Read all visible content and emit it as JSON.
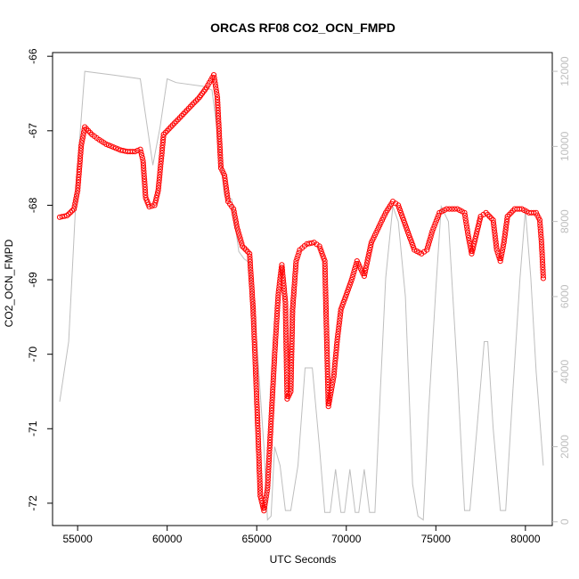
{
  "chart_data": {
    "type": "scatter",
    "title": "ORCAS RF08 CO2_OCN_FMPD",
    "xlabel": "UTC Seconds",
    "ylabel": "CO2_OCN_FMPD",
    "xlim": [
      53600,
      81500
    ],
    "ylim": [
      -72.3,
      -65.95
    ],
    "x_ticks": [
      55000,
      60000,
      65000,
      70000,
      75000,
      80000
    ],
    "y_ticks": [
      -72,
      -71,
      -70,
      -69,
      -68,
      -67,
      -66
    ],
    "y2lim": [
      -100,
      12500
    ],
    "y2_ticks": [
      0,
      2000,
      4000,
      6000,
      8000,
      10000,
      12000
    ],
    "grid": false,
    "colors": {
      "primary": "#ff0000",
      "secondary": "#bebebe",
      "axis": "#000000"
    },
    "series": [
      {
        "role": "primary",
        "marker": "open-circle",
        "points": [
          [
            54000,
            -68.16
          ],
          [
            54400,
            -68.14
          ],
          [
            54800,
            -68.05
          ],
          [
            55000,
            -67.8
          ],
          [
            55200,
            -67.2
          ],
          [
            55400,
            -66.95
          ],
          [
            55800,
            -67.05
          ],
          [
            56200,
            -67.12
          ],
          [
            56600,
            -67.18
          ],
          [
            57000,
            -67.22
          ],
          [
            57400,
            -67.26
          ],
          [
            57800,
            -67.28
          ],
          [
            58200,
            -67.28
          ],
          [
            58500,
            -67.25
          ],
          [
            58650,
            -67.4
          ],
          [
            58800,
            -67.9
          ],
          [
            59000,
            -68.02
          ],
          [
            59300,
            -68.0
          ],
          [
            59500,
            -67.8
          ],
          [
            59800,
            -67.05
          ],
          [
            60200,
            -66.95
          ],
          [
            60600,
            -66.85
          ],
          [
            61000,
            -66.75
          ],
          [
            61400,
            -66.65
          ],
          [
            61800,
            -66.55
          ],
          [
            62200,
            -66.42
          ],
          [
            62600,
            -66.25
          ],
          [
            62800,
            -66.55
          ],
          [
            63000,
            -67.5
          ],
          [
            63200,
            -67.6
          ],
          [
            63400,
            -67.95
          ],
          [
            63700,
            -68.05
          ],
          [
            63900,
            -68.3
          ],
          [
            64200,
            -68.55
          ],
          [
            64600,
            -68.65
          ],
          [
            64800,
            -69.4
          ],
          [
            65000,
            -70.6
          ],
          [
            65200,
            -71.9
          ],
          [
            65400,
            -72.1
          ],
          [
            65600,
            -71.8
          ],
          [
            65800,
            -70.9
          ],
          [
            66000,
            -70.0
          ],
          [
            66200,
            -69.2
          ],
          [
            66400,
            -68.8
          ],
          [
            66600,
            -69.3
          ],
          [
            66700,
            -70.6
          ],
          [
            66900,
            -70.5
          ],
          [
            67000,
            -69.4
          ],
          [
            67200,
            -68.75
          ],
          [
            67400,
            -68.6
          ],
          [
            67800,
            -68.52
          ],
          [
            68200,
            -68.5
          ],
          [
            68500,
            -68.55
          ],
          [
            68800,
            -68.75
          ],
          [
            69000,
            -70.7
          ],
          [
            69300,
            -70.3
          ],
          [
            69500,
            -69.8
          ],
          [
            69700,
            -69.4
          ],
          [
            70000,
            -69.2
          ],
          [
            70300,
            -69.0
          ],
          [
            70600,
            -68.75
          ],
          [
            71000,
            -68.95
          ],
          [
            71400,
            -68.5
          ],
          [
            71800,
            -68.3
          ],
          [
            72200,
            -68.1
          ],
          [
            72600,
            -67.95
          ],
          [
            72900,
            -68.0
          ],
          [
            73200,
            -68.2
          ],
          [
            73500,
            -68.4
          ],
          [
            73800,
            -68.6
          ],
          [
            74200,
            -68.65
          ],
          [
            74500,
            -68.6
          ],
          [
            74800,
            -68.35
          ],
          [
            75200,
            -68.1
          ],
          [
            75600,
            -68.05
          ],
          [
            76200,
            -68.05
          ],
          [
            76600,
            -68.1
          ],
          [
            76800,
            -68.4
          ],
          [
            77000,
            -68.65
          ],
          [
            77200,
            -68.45
          ],
          [
            77500,
            -68.15
          ],
          [
            77800,
            -68.1
          ],
          [
            78200,
            -68.2
          ],
          [
            78400,
            -68.6
          ],
          [
            78600,
            -68.75
          ],
          [
            78800,
            -68.5
          ],
          [
            79000,
            -68.15
          ],
          [
            79400,
            -68.05
          ],
          [
            79800,
            -68.05
          ],
          [
            80200,
            -68.1
          ],
          [
            80600,
            -68.1
          ],
          [
            80800,
            -68.2
          ],
          [
            80900,
            -68.5
          ],
          [
            81000,
            -68.98
          ]
        ]
      },
      {
        "role": "secondary",
        "marker": "line",
        "points": [
          [
            54000,
            3200
          ],
          [
            54500,
            4800
          ],
          [
            55000,
            9500
          ],
          [
            55400,
            12000
          ],
          [
            57000,
            11900
          ],
          [
            58500,
            11800
          ],
          [
            58800,
            10800
          ],
          [
            59200,
            9500
          ],
          [
            59600,
            10500
          ],
          [
            60000,
            11800
          ],
          [
            60500,
            11700
          ],
          [
            62000,
            11600
          ],
          [
            62500,
            11500
          ],
          [
            62900,
            10000
          ],
          [
            63200,
            8700
          ],
          [
            63600,
            8600
          ],
          [
            64000,
            7200
          ],
          [
            64300,
            7000
          ],
          [
            64600,
            6900
          ],
          [
            65000,
            4800
          ],
          [
            65400,
            2000
          ],
          [
            65600,
            50
          ],
          [
            65800,
            150
          ],
          [
            66000,
            2000
          ],
          [
            66300,
            1500
          ],
          [
            66600,
            300
          ],
          [
            66900,
            300
          ],
          [
            67300,
            1500
          ],
          [
            67700,
            4100
          ],
          [
            68100,
            4100
          ],
          [
            68500,
            2000
          ],
          [
            68800,
            250
          ],
          [
            69100,
            250
          ],
          [
            69400,
            1400
          ],
          [
            69700,
            250
          ],
          [
            69900,
            250
          ],
          [
            70200,
            1400
          ],
          [
            70500,
            250
          ],
          [
            70700,
            250
          ],
          [
            71000,
            1400
          ],
          [
            71300,
            250
          ],
          [
            71600,
            250
          ],
          [
            71900,
            3500
          ],
          [
            72200,
            6500
          ],
          [
            72600,
            8400
          ],
          [
            72900,
            8000
          ],
          [
            73300,
            6000
          ],
          [
            73700,
            1000
          ],
          [
            74000,
            150
          ],
          [
            74300,
            50
          ],
          [
            74600,
            3000
          ],
          [
            75000,
            6200
          ],
          [
            75300,
            8400
          ],
          [
            75700,
            8000
          ],
          [
            76200,
            4000
          ],
          [
            76600,
            300
          ],
          [
            76900,
            300
          ],
          [
            77300,
            2500
          ],
          [
            77700,
            4800
          ],
          [
            77900,
            4800
          ],
          [
            78200,
            2500
          ],
          [
            78600,
            300
          ],
          [
            78900,
            300
          ],
          [
            79300,
            3500
          ],
          [
            79700,
            6500
          ],
          [
            80000,
            8300
          ],
          [
            80300,
            6500
          ],
          [
            80600,
            4000
          ],
          [
            81000,
            1500
          ]
        ]
      }
    ]
  }
}
